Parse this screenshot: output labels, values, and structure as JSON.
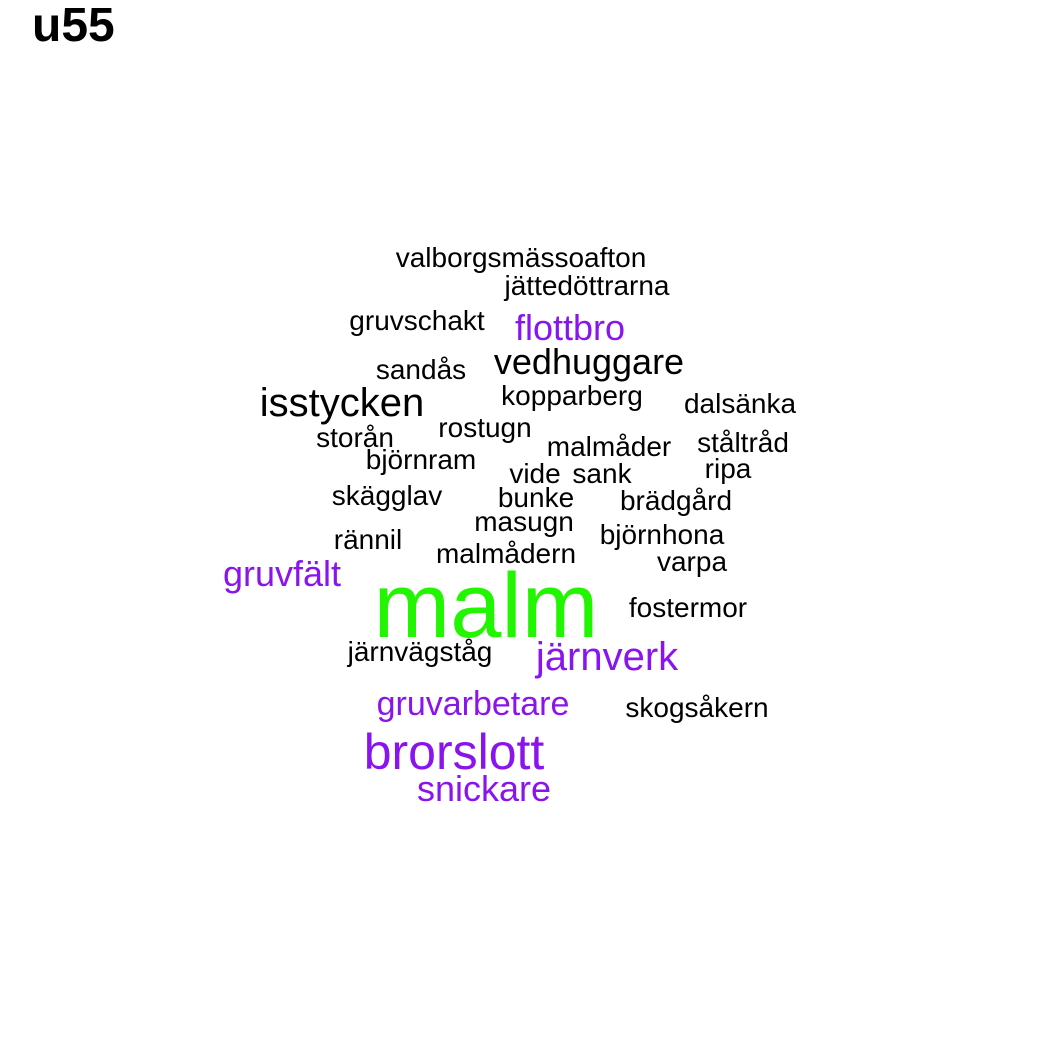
{
  "title": "u55",
  "colors": {
    "primary_word": "#22f500",
    "highlight_word": "#8a14ee",
    "default_word": "#000000"
  },
  "cloud": {
    "words": [
      {
        "text": "valborgsmässoafton",
        "tone": "black"
      },
      {
        "text": "jättedöttrarna",
        "tone": "black"
      },
      {
        "text": "gruvschakt",
        "tone": "black"
      },
      {
        "text": "flottbro",
        "tone": "purple"
      },
      {
        "text": "sandås",
        "tone": "black"
      },
      {
        "text": "vedhuggare",
        "tone": "black"
      },
      {
        "text": "isstycken",
        "tone": "black"
      },
      {
        "text": "kopparberg",
        "tone": "black"
      },
      {
        "text": "dalsänka",
        "tone": "black"
      },
      {
        "text": "rostugn",
        "tone": "black"
      },
      {
        "text": "storån",
        "tone": "black"
      },
      {
        "text": "malmåder",
        "tone": "black"
      },
      {
        "text": "ståltråd",
        "tone": "black"
      },
      {
        "text": "björnram",
        "tone": "black"
      },
      {
        "text": "vide",
        "tone": "black"
      },
      {
        "text": "sank",
        "tone": "black"
      },
      {
        "text": "ripa",
        "tone": "black"
      },
      {
        "text": "skägglav",
        "tone": "black"
      },
      {
        "text": "bunke",
        "tone": "black"
      },
      {
        "text": "brädgård",
        "tone": "black"
      },
      {
        "text": "masugn",
        "tone": "black"
      },
      {
        "text": "rännil",
        "tone": "black"
      },
      {
        "text": "björnhona",
        "tone": "black"
      },
      {
        "text": "malmådern",
        "tone": "black"
      },
      {
        "text": "varpa",
        "tone": "black"
      },
      {
        "text": "gruvfält",
        "tone": "purple"
      },
      {
        "text": "malm",
        "tone": "green"
      },
      {
        "text": "fostermor",
        "tone": "black"
      },
      {
        "text": "järnvägståg",
        "tone": "black"
      },
      {
        "text": "järnverk",
        "tone": "purple"
      },
      {
        "text": "gruvarbetare",
        "tone": "purple"
      },
      {
        "text": "skogsåkern",
        "tone": "black"
      },
      {
        "text": "brorslott",
        "tone": "purple"
      },
      {
        "text": "snickare",
        "tone": "purple"
      }
    ]
  }
}
